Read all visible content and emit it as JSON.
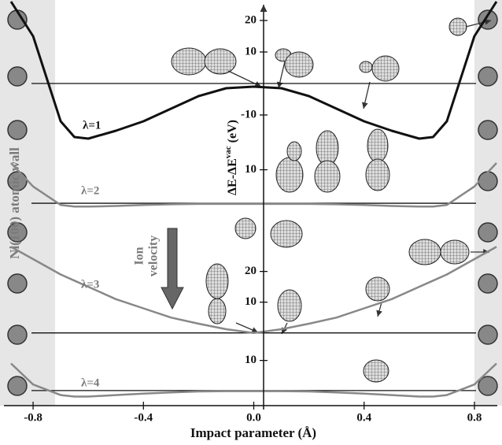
{
  "labels": {
    "wall": "Ni(100) atomic wall",
    "ion_velocity": [
      "Ion",
      "velocity"
    ]
  },
  "chart_data": [
    {
      "type": "line",
      "label": "λ=1",
      "color": "#111111",
      "ylabel": {
        "text": "ΔE-ΔE",
        "superscript": "vac",
        "unit": "(eV)"
      },
      "x": [
        -0.88,
        -0.8,
        -0.7,
        -0.65,
        -0.6,
        -0.5,
        -0.4,
        -0.3,
        -0.2,
        -0.1,
        0,
        0.1,
        0.2,
        0.3,
        0.4,
        0.5,
        0.6,
        0.65,
        0.7,
        0.8,
        0.88
      ],
      "values": [
        26,
        15,
        -12,
        -17,
        -17.5,
        -15,
        -12,
        -8,
        -4,
        -1.5,
        -1,
        -1.5,
        -4,
        -8,
        -12,
        -15,
        -17.5,
        -17,
        -12,
        15,
        26
      ],
      "ylim": [
        -21,
        26.5
      ],
      "yticks": [
        -10,
        10,
        20
      ]
    },
    {
      "type": "line",
      "label": "λ=2",
      "color": "#888888",
      "x": [
        -0.88,
        -0.8,
        -0.7,
        -0.65,
        -0.6,
        -0.5,
        -0.4,
        -0.3,
        -0.2,
        -0.1,
        0,
        0.1,
        0.2,
        0.3,
        0.4,
        0.5,
        0.6,
        0.65,
        0.7,
        0.8,
        0.88
      ],
      "values": [
        12,
        5,
        -0.5,
        -1,
        -1,
        -0.8,
        -0.5,
        -0.3,
        -0.2,
        -0.2,
        -0.2,
        -0.2,
        -0.2,
        -0.3,
        -0.5,
        -0.8,
        -1,
        -1,
        -0.5,
        5,
        12
      ],
      "ylim": [
        -7.5,
        16
      ],
      "yticks": [
        10
      ]
    },
    {
      "type": "line",
      "label": "λ=3",
      "color": "#888888",
      "x": [
        -0.88,
        -0.8,
        -0.7,
        -0.65,
        -0.6,
        -0.5,
        -0.4,
        -0.3,
        -0.2,
        -0.1,
        0,
        0.1,
        0.2,
        0.3,
        0.4,
        0.5,
        0.6,
        0.65,
        0.7,
        0.8,
        0.88
      ],
      "values": [
        28,
        24,
        19,
        17,
        15,
        11,
        8,
        5,
        3,
        1.2,
        0,
        1.2,
        3,
        5,
        8,
        11,
        15,
        17,
        19,
        24,
        28
      ],
      "ylim": [
        -7,
        34
      ],
      "yticks": [
        10,
        20
      ]
    },
    {
      "type": "line",
      "label": "λ=4",
      "color": "#888888",
      "x": [
        -0.88,
        -0.8,
        -0.7,
        -0.65,
        -0.6,
        -0.5,
        -0.4,
        -0.3,
        -0.2,
        -0.1,
        0,
        0.1,
        0.2,
        0.3,
        0.4,
        0.5,
        0.6,
        0.65,
        0.7,
        0.8,
        0.88
      ],
      "values": [
        9,
        2,
        -1.5,
        -2,
        -2,
        -1.5,
        -1,
        -0.6,
        -0.3,
        -0.2,
        -0.2,
        -0.2,
        -0.3,
        -0.6,
        -1,
        -1.5,
        -2,
        -2,
        -1.5,
        2,
        9
      ],
      "ylim": [
        -5,
        12
      ],
      "yticks": [
        10
      ],
      "xlabel": "Impact parameter (Å)",
      "xlim": [
        -0.92,
        0.9
      ],
      "xticks": [
        {
          "value": -0.8,
          "label": "-0.8"
        },
        {
          "value": -0.4,
          "label": "-0.4"
        },
        {
          "value": 0,
          "label": "0.0"
        },
        {
          "value": 0.4,
          "label": "0.4"
        },
        {
          "value": 0.8,
          "label": "0.8"
        }
      ]
    }
  ]
}
